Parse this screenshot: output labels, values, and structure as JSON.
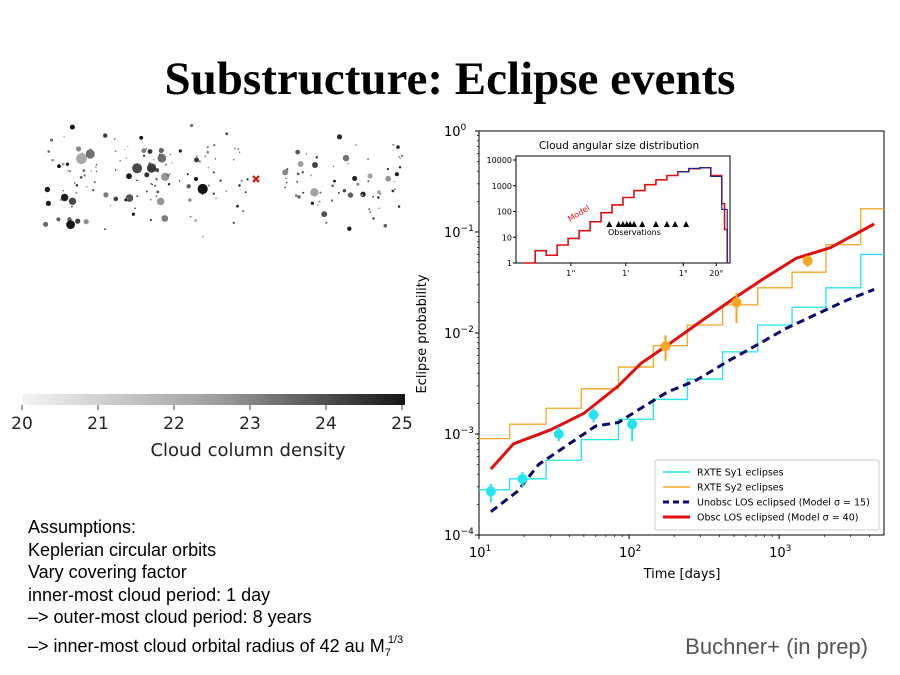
{
  "slide": {
    "title": "Substructure: Eclipse events",
    "citation": "Buchner+ (in prep)",
    "assumptions": [
      "Assumptions:",
      "Keplerian circular orbits",
      "Vary covering factor",
      "inner-most cloud period: 1 day",
      "–> outer-most cloud period: 8 years"
    ],
    "radius_line": {
      "text": "–> inner-most cloud orbital radius of 42 au M",
      "subscript": "7",
      "superscript": "1/3"
    }
  },
  "cloud_map": {
    "colorbar_label": "Cloud column density",
    "colorbar_ticks": [
      "20",
      "21",
      "22",
      "23",
      "24",
      "25"
    ],
    "colorbar_range": [
      20,
      25
    ],
    "marker_color": "#e01010"
  },
  "chart_data": [
    {
      "type": "line",
      "ylabel": "Eclipse probability",
      "xlabel": "Time [days]",
      "x_scale": "log",
      "y_scale": "log",
      "xlim": [
        10,
        5000
      ],
      "ylim": [
        0.0001,
        1
      ],
      "x_ticks": [
        {
          "base": "10",
          "exp": "1",
          "value": 10
        },
        {
          "base": "10",
          "exp": "2",
          "value": 100
        },
        {
          "base": "10",
          "exp": "3",
          "value": 1000
        }
      ],
      "y_ticks": [
        {
          "base": "10",
          "exp": "−4",
          "value": 0.0001
        },
        {
          "base": "10",
          "exp": "−3",
          "value": 0.001
        },
        {
          "base": "10",
          "exp": "−2",
          "value": 0.01
        },
        {
          "base": "10",
          "exp": "−1",
          "value": 0.1
        },
        {
          "base": "10",
          "exp": "0",
          "value": 1
        }
      ],
      "legend_position": "bottom-right",
      "series": [
        {
          "name": "RXTE Sy1 eclipses",
          "style": "step",
          "color": "#22e5f0",
          "x": [
            10,
            16,
            28,
            48,
            85,
            145,
            245,
            420,
            720,
            1220,
            2050,
            3500,
            5000
          ],
          "y": [
            0.00028,
            0.00036,
            0.00055,
            0.00088,
            0.0014,
            0.0022,
            0.0035,
            0.0065,
            0.012,
            0.018,
            0.028,
            0.06,
            0.06
          ]
        },
        {
          "name": "RXTE Sy2 eclipses",
          "style": "step",
          "color": "#f5a623",
          "x": [
            10,
            16,
            28,
            48,
            85,
            145,
            245,
            420,
            720,
            1220,
            2050,
            3500,
            5000
          ],
          "y": [
            0.0009,
            0.00125,
            0.0018,
            0.0028,
            0.0046,
            0.0075,
            0.012,
            0.019,
            0.028,
            0.04,
            0.075,
            0.17,
            0.17
          ]
        },
        {
          "name": "Unobsc LOS eclipsed (Model σ = 15)",
          "style": "dashed",
          "color": "#0a0a6e",
          "x": [
            12,
            18,
            25,
            40,
            60,
            85,
            120,
            180,
            280,
            450,
            700,
            1100,
            1800,
            2800,
            4300
          ],
          "y": [
            0.00017,
            0.00027,
            0.0005,
            0.0008,
            0.0012,
            0.0013,
            0.0018,
            0.0026,
            0.0034,
            0.0052,
            0.0075,
            0.011,
            0.0155,
            0.021,
            0.027
          ]
        },
        {
          "name": "Obsc LOS eclipsed (Model σ = 40)",
          "style": "solid",
          "color": "#e01010",
          "x": [
            12,
            17,
            30,
            50,
            85,
            120,
            190,
            300,
            500,
            800,
            1300,
            2200,
            4300
          ],
          "y": [
            0.00045,
            0.0008,
            0.0011,
            0.0016,
            0.003,
            0.005,
            0.008,
            0.013,
            0.022,
            0.035,
            0.055,
            0.07,
            0.12
          ]
        }
      ],
      "points": [
        {
          "group": "Sy1",
          "color": "#22e5f0",
          "x": 12,
          "y": 0.00027,
          "err_lo": 0.00021,
          "err_hi": 0.00032
        },
        {
          "group": "Sy1",
          "color": "#22e5f0",
          "x": 19.5,
          "y": 0.00036,
          "err_lo": 0.0003,
          "err_hi": 0.00042
        },
        {
          "group": "Sy1",
          "color": "#22e5f0",
          "x": 34,
          "y": 0.001,
          "err_lo": 0.00085,
          "err_hi": 0.00118
        },
        {
          "group": "Sy1",
          "color": "#22e5f0",
          "x": 58,
          "y": 0.00155,
          "err_lo": 0.0013,
          "err_hi": 0.0018
        },
        {
          "group": "Sy1",
          "color": "#22e5f0",
          "x": 105,
          "y": 0.00125,
          "err_lo": 0.00085,
          "err_hi": 0.0014
        },
        {
          "group": "Sy2",
          "color": "#f5a623",
          "x": 175,
          "y": 0.0074,
          "err_lo": 0.0053,
          "err_hi": 0.0095
        },
        {
          "group": "Sy2",
          "color": "#f5a623",
          "x": 520,
          "y": 0.02,
          "err_lo": 0.0125,
          "err_hi": 0.025
        },
        {
          "group": "Sy2",
          "color": "#f5a623",
          "x": 1550,
          "y": 0.052,
          "err_lo": 0.045,
          "err_hi": 0.058
        }
      ]
    },
    {
      "type": "line",
      "title": "Cloud angular size distribution",
      "y_scale": "log",
      "ylim": [
        1,
        10000
      ],
      "y_ticks": [
        "10000",
        "1000",
        "100",
        "10",
        "1"
      ],
      "x_ticks": [
        "1''",
        "1'",
        "1°",
        "20°"
      ],
      "annotations": [
        "Model",
        "Observations"
      ],
      "series": [
        {
          "name": "Model",
          "color": "#e01010",
          "x": [
            0.0,
            0.2,
            0.4,
            0.6,
            0.8,
            1.0,
            1.2,
            1.4,
            1.6,
            1.8,
            2.0,
            2.2,
            2.4,
            2.6,
            2.8,
            3.0,
            3.2,
            3.4,
            3.6,
            3.65,
            3.7
          ],
          "y": [
            1,
            3,
            2,
            5,
            9,
            18,
            40,
            90,
            180,
            350,
            650,
            1100,
            1700,
            2500,
            3500,
            4600,
            5000,
            2500,
            200,
            20,
            1
          ]
        },
        {
          "name": "Model (blue)",
          "color": "#1a2a9a",
          "x": [
            2.8,
            3.0,
            3.2,
            3.4,
            3.6,
            3.7
          ],
          "y": [
            3500,
            4700,
            5000,
            2300,
            120,
            1
          ]
        }
      ],
      "observations_x": [
        1.55,
        1.72,
        1.8,
        1.87,
        1.93,
        2.0,
        2.15,
        2.4,
        2.6,
        2.75,
        2.95
      ]
    }
  ]
}
